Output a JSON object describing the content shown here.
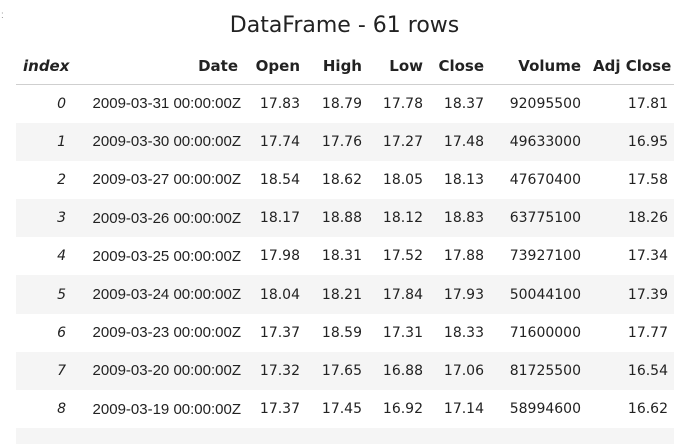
{
  "edge_mark": ":",
  "title": "DataFrame - 61 rows",
  "columns": [
    "index",
    "Date",
    "Open",
    "High",
    "Low",
    "Close",
    "Volume",
    "Adj Close"
  ],
  "rows": [
    [
      "0",
      "2009-03-31 00:00:00Z",
      "17.83",
      "18.79",
      "17.78",
      "18.37",
      "92095500",
      "17.81"
    ],
    [
      "1",
      "2009-03-30 00:00:00Z",
      "17.74",
      "17.76",
      "17.27",
      "17.48",
      "49633000",
      "16.95"
    ],
    [
      "2",
      "2009-03-27 00:00:00Z",
      "18.54",
      "18.62",
      "18.05",
      "18.13",
      "47670400",
      "17.58"
    ],
    [
      "3",
      "2009-03-26 00:00:00Z",
      "18.17",
      "18.88",
      "18.12",
      "18.83",
      "63775100",
      "18.26"
    ],
    [
      "4",
      "2009-03-25 00:00:00Z",
      "17.98",
      "18.31",
      "17.52",
      "17.88",
      "73927100",
      "17.34"
    ],
    [
      "5",
      "2009-03-24 00:00:00Z",
      "18.04",
      "18.21",
      "17.84",
      "17.93",
      "50044100",
      "17.39"
    ],
    [
      "6",
      "2009-03-23 00:00:00Z",
      "17.37",
      "18.59",
      "17.31",
      "18.33",
      "71600000",
      "17.77"
    ],
    [
      "7",
      "2009-03-20 00:00:00Z",
      "17.32",
      "17.65",
      "16.88",
      "17.06",
      "81725500",
      "16.54"
    ],
    [
      "8",
      "2009-03-19 00:00:00Z",
      "17.37",
      "17.45",
      "16.92",
      "17.14",
      "58994600",
      "16.62"
    ],
    [
      "",
      "",
      "",
      "",
      "",
      "",
      "",
      ""
    ]
  ]
}
